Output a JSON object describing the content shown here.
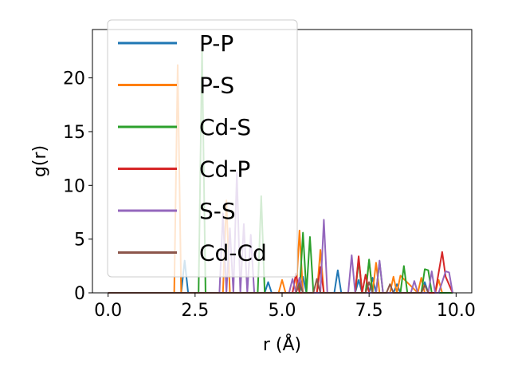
{
  "chart_data": {
    "type": "line",
    "title": "",
    "xlabel": "r (Å)",
    "ylabel": "g(r)",
    "xlim": [
      -0.45,
      10.45
    ],
    "ylim": [
      0,
      24.5
    ],
    "xticks": [
      0.0,
      2.5,
      5.0,
      7.5,
      10.0
    ],
    "xtick_labels": [
      "0.0",
      "2.5",
      "5.0",
      "7.5",
      "10.0"
    ],
    "yticks": [
      0,
      5,
      10,
      15,
      20
    ],
    "ytick_labels": [
      "0",
      "5",
      "10",
      "15",
      "20"
    ],
    "grid": false,
    "legend_position": "upper-left",
    "series": [
      {
        "name": "P-P",
        "color": "#1f77b4",
        "x": [
          0,
          2.0,
          2.1,
          2.2,
          2.3,
          2.4,
          4.5,
          4.6,
          4.7,
          5.5,
          5.6,
          5.7,
          6.5,
          6.6,
          6.7,
          7.1,
          7.2,
          7.3,
          7.5,
          7.6,
          7.7,
          8.2,
          8.3,
          8.4,
          9.0,
          9.1,
          9.2,
          9.8,
          9.9
        ],
        "y": [
          0,
          0,
          0,
          3.0,
          0,
          0,
          0,
          1.0,
          0,
          0,
          1.5,
          0,
          0,
          2.1,
          0,
          0,
          1.2,
          0,
          0,
          1.4,
          0,
          0,
          0.8,
          0,
          0,
          1.0,
          0,
          0,
          0
        ]
      },
      {
        "name": "P-S",
        "color": "#ff7f0e",
        "x": [
          0,
          1.9,
          2.0,
          2.1,
          3.3,
          3.4,
          3.5,
          4.9,
          5.0,
          5.1,
          5.4,
          5.5,
          5.6,
          5.7,
          6.0,
          6.1,
          6.2,
          7.1,
          7.2,
          7.3,
          7.4,
          7.5,
          7.6,
          7.7,
          7.8,
          8.1,
          8.2,
          8.3,
          8.4,
          8.9,
          9.0,
          9.1,
          9.4,
          9.5,
          9.6,
          9.9
        ],
        "y": [
          0,
          0,
          21.2,
          0,
          0,
          8.6,
          0,
          0,
          1.2,
          0,
          0,
          5.8,
          0,
          0,
          0,
          4.0,
          0,
          0,
          3.2,
          0,
          0,
          3.0,
          0,
          2.8,
          0,
          0,
          1.5,
          0,
          1.6,
          0,
          1.4,
          0,
          0,
          1.2,
          0,
          0
        ]
      },
      {
        "name": "Cd-S",
        "color": "#2ca02c",
        "x": [
          0,
          2.6,
          2.7,
          2.8,
          4.3,
          4.4,
          4.5,
          5.5,
          5.6,
          5.7,
          5.8,
          5.9,
          7.1,
          7.2,
          7.3,
          7.4,
          7.5,
          7.6,
          7.7,
          7.8,
          7.9,
          8.4,
          8.5,
          8.6,
          9.0,
          9.1,
          9.2,
          9.3,
          9.4,
          9.9
        ],
        "y": [
          0,
          0,
          22.8,
          0,
          0,
          9.0,
          0,
          0,
          5.6,
          0,
          5.2,
          0,
          0,
          3.0,
          0,
          0,
          3.1,
          0,
          0,
          2.9,
          0,
          0,
          2.5,
          0,
          0,
          2.2,
          2.1,
          0,
          0,
          0
        ]
      },
      {
        "name": "Cd-P",
        "color": "#d62728",
        "x": [
          0,
          5.3,
          5.4,
          5.5,
          6.0,
          6.1,
          6.2,
          7.1,
          7.2,
          7.3,
          7.4,
          7.5,
          9.4,
          9.5,
          9.6,
          9.7,
          9.9
        ],
        "y": [
          0,
          0,
          1.8,
          0,
          0,
          2.4,
          0,
          0,
          3.4,
          0,
          1.7,
          0,
          0,
          1.9,
          3.8,
          1.5,
          0
        ]
      },
      {
        "name": "S-S",
        "color": "#9467bd",
        "x": [
          0,
          3.2,
          3.3,
          3.4,
          3.5,
          3.6,
          3.7,
          3.8,
          3.9,
          4.0,
          4.1,
          4.2,
          5.2,
          5.3,
          5.4,
          5.5,
          5.6,
          6.1,
          6.2,
          6.3,
          6.9,
          7.0,
          7.1,
          7.7,
          7.8,
          7.9,
          8.7,
          8.8,
          8.9,
          9.2,
          9.3,
          9.4,
          9.5,
          9.6,
          9.7,
          9.8,
          9.9
        ],
        "y": [
          0,
          0,
          7.4,
          0,
          6.0,
          0,
          11.2,
          0,
          6.4,
          0,
          5.4,
          0,
          0,
          1.3,
          0,
          1.4,
          0,
          0,
          6.8,
          0,
          0,
          3.5,
          0,
          0,
          3.0,
          0,
          0,
          1.1,
          0,
          0,
          2.0,
          0,
          0,
          1.0,
          2.0,
          1.9,
          0
        ]
      },
      {
        "name": "Cd-Cd",
        "color": "#8c564b",
        "x": [
          0,
          5.4,
          5.5,
          5.6,
          5.9,
          6.0,
          6.1,
          7.4,
          7.5,
          7.6,
          8.0,
          8.1,
          8.2,
          9.0,
          9.1,
          9.2
        ],
        "y": [
          0,
          0,
          0.9,
          0,
          0,
          1.3,
          0,
          0,
          1.0,
          0,
          0,
          0.8,
          0,
          0,
          0.7,
          0
        ]
      }
    ]
  }
}
